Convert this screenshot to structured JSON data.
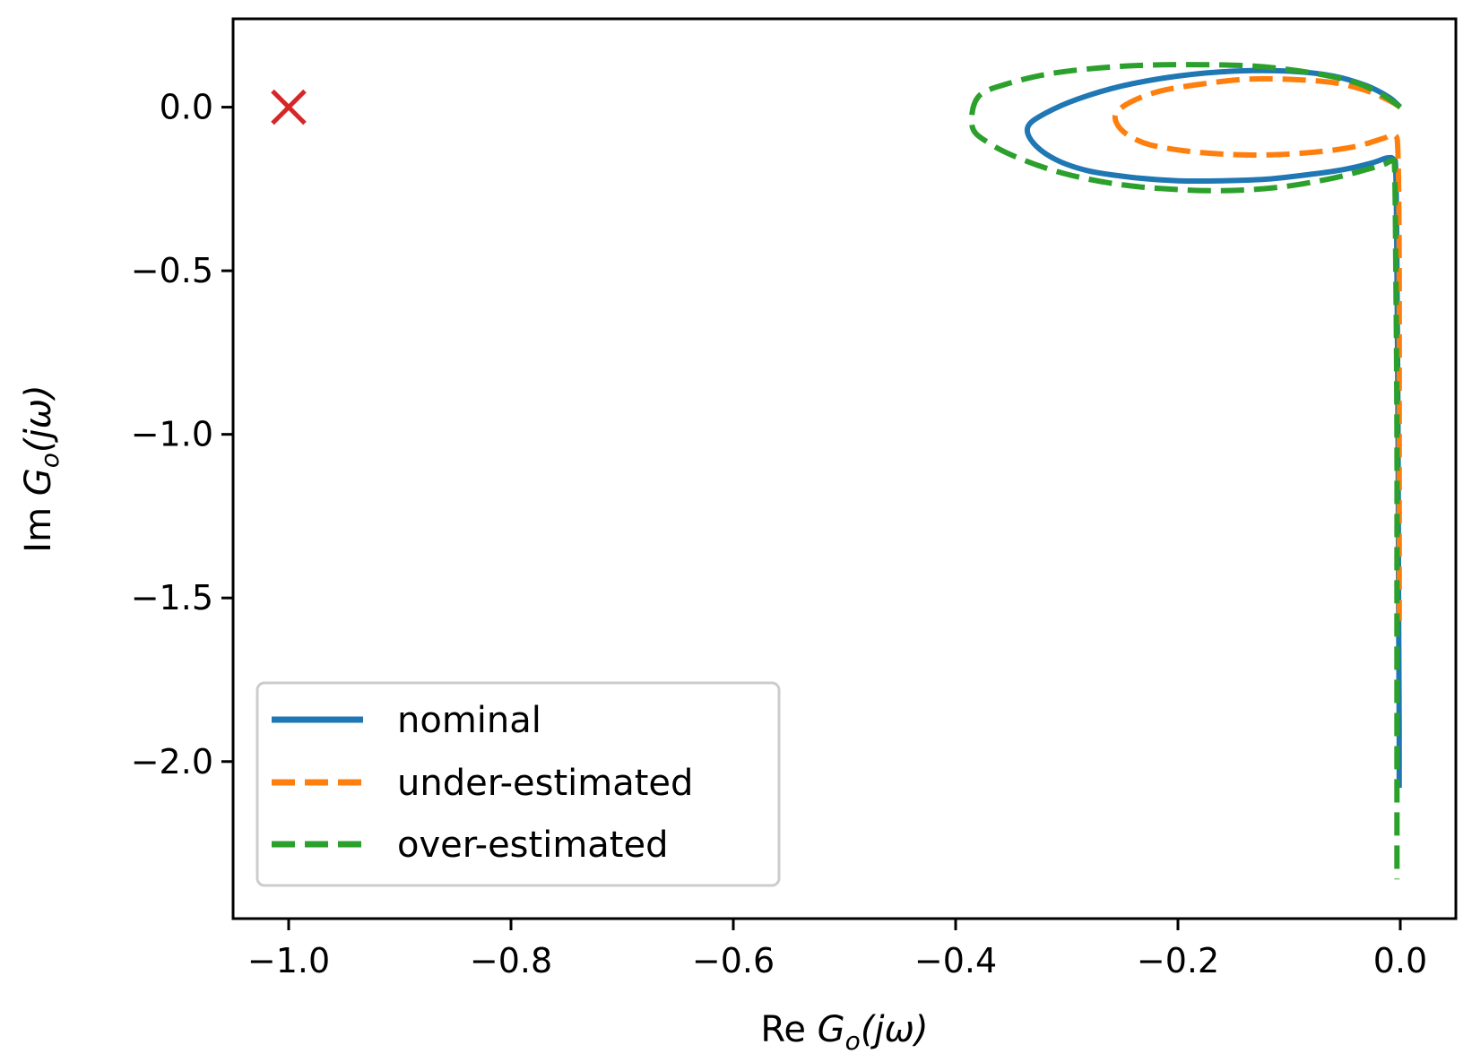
{
  "chart_data": {
    "type": "line",
    "title": "",
    "xlabel": "Re G_o(jω)",
    "ylabel": "Im G_o(jω)",
    "xlabel_prefix": "Re",
    "ylabel_prefix": "Im",
    "label_symbol": "G",
    "label_subscript": "o",
    "label_argument": "(jω)",
    "xlim": [
      -1.05,
      0.05
    ],
    "ylim": [
      -2.48,
      0.27
    ],
    "xticks": [
      -1.0,
      -0.8,
      -0.6,
      -0.4,
      -0.2,
      0.0
    ],
    "xtick_labels": [
      "−1.0",
      "−0.8",
      "−0.6",
      "−0.4",
      "−0.2",
      "0.0"
    ],
    "yticks": [
      0.0,
      -0.5,
      -1.0,
      -1.5,
      -2.0
    ],
    "ytick_labels": [
      "0.0",
      "−0.5",
      "−1.0",
      "−1.5",
      "−2.0"
    ],
    "grid": false,
    "legend_position": "lower-left",
    "critical_point": {
      "label": "critical point",
      "x": -1.0,
      "y": 0.0,
      "marker": "x",
      "color": "#d62728"
    },
    "series": [
      {
        "name": "nominal",
        "style": "solid",
        "color": "#1f77b4",
        "x": [
          0.0,
          -0.01,
          -0.03,
          -0.06,
          -0.1,
          -0.15,
          -0.2,
          -0.25,
          -0.29,
          -0.32,
          -0.335,
          -0.33,
          -0.31,
          -0.28,
          -0.24,
          -0.2,
          -0.16,
          -0.12,
          -0.08,
          -0.05,
          -0.025,
          -0.012,
          -0.006,
          -0.004,
          -0.003,
          -0.002,
          -0.0015,
          -0.001,
          -0.001
        ],
        "y": [
          0.0,
          0.03,
          0.065,
          0.095,
          0.11,
          0.11,
          0.095,
          0.065,
          0.025,
          -0.02,
          -0.06,
          -0.11,
          -0.16,
          -0.195,
          -0.215,
          -0.225,
          -0.225,
          -0.22,
          -0.205,
          -0.19,
          -0.17,
          -0.155,
          -0.16,
          -0.2,
          -0.5,
          -1.0,
          -1.5,
          -1.9,
          -2.08
        ]
      },
      {
        "name": "under-estimated",
        "style": "dashed",
        "color": "#ff7f0e",
        "x": [
          0.0,
          -0.01,
          -0.03,
          -0.06,
          -0.1,
          -0.14,
          -0.18,
          -0.215,
          -0.24,
          -0.255,
          -0.255,
          -0.245,
          -0.225,
          -0.19,
          -0.15,
          -0.11,
          -0.07,
          -0.04,
          -0.015,
          -0.005,
          -0.002,
          -0.001,
          -0.001,
          -0.001,
          -0.001
        ],
        "y": [
          0.0,
          0.02,
          0.05,
          0.075,
          0.085,
          0.085,
          0.07,
          0.05,
          0.02,
          -0.015,
          -0.05,
          -0.085,
          -0.115,
          -0.135,
          -0.145,
          -0.145,
          -0.135,
          -0.12,
          -0.095,
          -0.085,
          -0.15,
          -0.5,
          -1.0,
          -1.4,
          -1.57
        ]
      },
      {
        "name": "over-estimated",
        "style": "dashed",
        "color": "#2ca02c",
        "x": [
          0.0,
          -0.015,
          -0.04,
          -0.08,
          -0.13,
          -0.19,
          -0.25,
          -0.31,
          -0.355,
          -0.38,
          -0.385,
          -0.37,
          -0.34,
          -0.3,
          -0.255,
          -0.21,
          -0.16,
          -0.11,
          -0.065,
          -0.035,
          -0.015,
          -0.007,
          -0.005,
          -0.004,
          -0.003,
          -0.003,
          -0.003,
          -0.003
        ],
        "y": [
          0.0,
          0.035,
          0.075,
          0.105,
          0.125,
          0.13,
          0.125,
          0.105,
          0.07,
          0.03,
          -0.06,
          -0.11,
          -0.16,
          -0.205,
          -0.235,
          -0.25,
          -0.255,
          -0.245,
          -0.22,
          -0.195,
          -0.175,
          -0.165,
          -0.2,
          -0.5,
          -1.0,
          -1.5,
          -2.0,
          -2.36
        ]
      }
    ]
  }
}
